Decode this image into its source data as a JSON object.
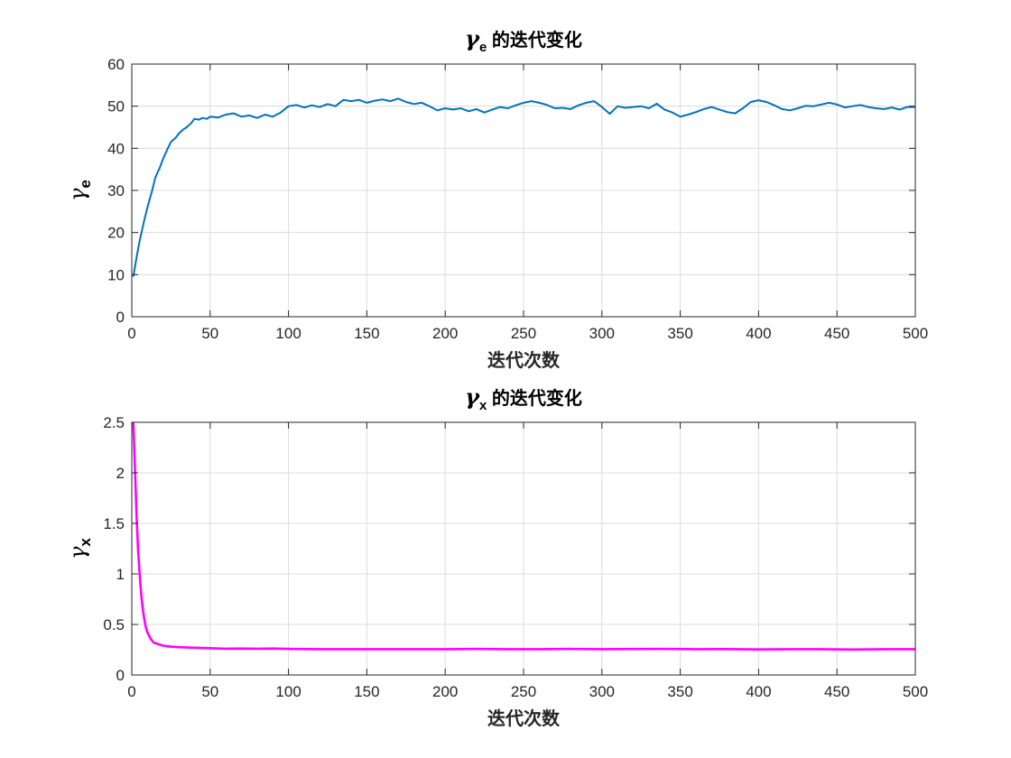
{
  "chart_data": [
    {
      "type": "line",
      "title_symbol": "γ",
      "title_sub": "e",
      "title_text": " 的迭代变化",
      "xlabel": "迭代次数",
      "ylabel_symbol": "γ",
      "ylabel_sub": "e",
      "xlim": [
        0,
        500
      ],
      "ylim": [
        0,
        60
      ],
      "xticks": [
        0,
        50,
        100,
        150,
        200,
        250,
        300,
        350,
        400,
        450,
        500
      ],
      "yticks": [
        0,
        10,
        20,
        30,
        40,
        50,
        60
      ],
      "ytick_labels": [
        "0",
        "10",
        "20",
        "30",
        "40",
        "50",
        "60"
      ],
      "grid": true,
      "series": [
        {
          "color": "#0072BD",
          "x": [
            1,
            3,
            5,
            8,
            10,
            13,
            15,
            18,
            20,
            23,
            25,
            28,
            30,
            33,
            35,
            38,
            40,
            43,
            45,
            48,
            50,
            55,
            60,
            65,
            70,
            75,
            80,
            85,
            90,
            95,
            100,
            105,
            110,
            115,
            120,
            125,
            130,
            135,
            140,
            145,
            150,
            155,
            160,
            165,
            170,
            175,
            180,
            185,
            190,
            195,
            200,
            205,
            210,
            215,
            220,
            225,
            230,
            235,
            240,
            245,
            250,
            255,
            260,
            265,
            270,
            275,
            280,
            285,
            290,
            295,
            300,
            305,
            310,
            315,
            320,
            325,
            330,
            335,
            340,
            345,
            350,
            355,
            360,
            365,
            370,
            375,
            380,
            385,
            390,
            395,
            400,
            405,
            410,
            415,
            420,
            425,
            430,
            435,
            440,
            445,
            450,
            455,
            460,
            465,
            470,
            475,
            480,
            485,
            490,
            495,
            500
          ],
          "y": [
            9.5,
            14,
            18,
            23,
            26,
            30,
            33,
            35.5,
            37.5,
            40,
            41.5,
            42.5,
            43.5,
            44.5,
            45,
            46,
            47,
            46.8,
            47.2,
            47,
            47.5,
            47.3,
            48,
            48.3,
            47.5,
            47.8,
            47.2,
            48,
            47.5,
            48.5,
            50,
            50.3,
            49.7,
            50.2,
            49.8,
            50.5,
            50,
            51.5,
            51.2,
            51.5,
            50.8,
            51.3,
            51.6,
            51.2,
            51.8,
            51,
            50.5,
            50.8,
            50,
            49,
            49.5,
            49.2,
            49.5,
            48.8,
            49.3,
            48.5,
            49.2,
            49.8,
            49.5,
            50.2,
            50.8,
            51.2,
            50.8,
            50.3,
            49.5,
            49.6,
            49.3,
            50.2,
            50.8,
            51.2,
            49.8,
            48.2,
            50,
            49.6,
            49.8,
            50,
            49.5,
            50.6,
            49.2,
            48.5,
            47.5,
            48,
            48.6,
            49.3,
            49.8,
            49.2,
            48.6,
            48.3,
            49.5,
            51,
            51.4,
            51,
            50.2,
            49.3,
            49,
            49.5,
            50.1,
            50,
            50.4,
            50.8,
            50.4,
            49.7,
            50,
            50.3,
            49.8,
            49.5,
            49.3,
            49.7,
            49.2,
            49.8,
            49.8
          ]
        }
      ]
    },
    {
      "type": "line",
      "title_symbol": "γ",
      "title_sub": "x",
      "title_text": " 的迭代变化",
      "xlabel": "迭代次数",
      "ylabel_symbol": "γ",
      "ylabel_sub": "x",
      "xlim": [
        0,
        500
      ],
      "ylim": [
        0,
        2.5
      ],
      "xticks": [
        0,
        50,
        100,
        150,
        200,
        250,
        300,
        350,
        400,
        450,
        500
      ],
      "yticks": [
        0,
        0.5,
        1,
        1.5,
        2,
        2.5
      ],
      "ytick_labels": [
        "0",
        "0.5",
        "1",
        "1.5",
        "2",
        "2.5"
      ],
      "grid": true,
      "series": [
        {
          "color": "#FF00FF",
          "x": [
            1,
            2,
            3,
            4,
            5,
            6,
            7,
            8,
            9,
            10,
            12,
            14,
            16,
            18,
            20,
            25,
            30,
            40,
            50,
            60,
            70,
            80,
            90,
            100,
            120,
            140,
            160,
            180,
            200,
            220,
            240,
            260,
            280,
            300,
            320,
            340,
            360,
            380,
            400,
            420,
            440,
            460,
            480,
            500
          ],
          "y": [
            2.5,
            2.05,
            1.6,
            1.25,
            1.0,
            0.8,
            0.65,
            0.55,
            0.47,
            0.42,
            0.36,
            0.32,
            0.31,
            0.3,
            0.29,
            0.28,
            0.275,
            0.27,
            0.265,
            0.26,
            0.262,
            0.26,
            0.262,
            0.258,
            0.255,
            0.255,
            0.255,
            0.255,
            0.255,
            0.258,
            0.255,
            0.255,
            0.258,
            0.255,
            0.257,
            0.258,
            0.255,
            0.256,
            0.253,
            0.255,
            0.255,
            0.252,
            0.255,
            0.255
          ]
        }
      ]
    }
  ]
}
